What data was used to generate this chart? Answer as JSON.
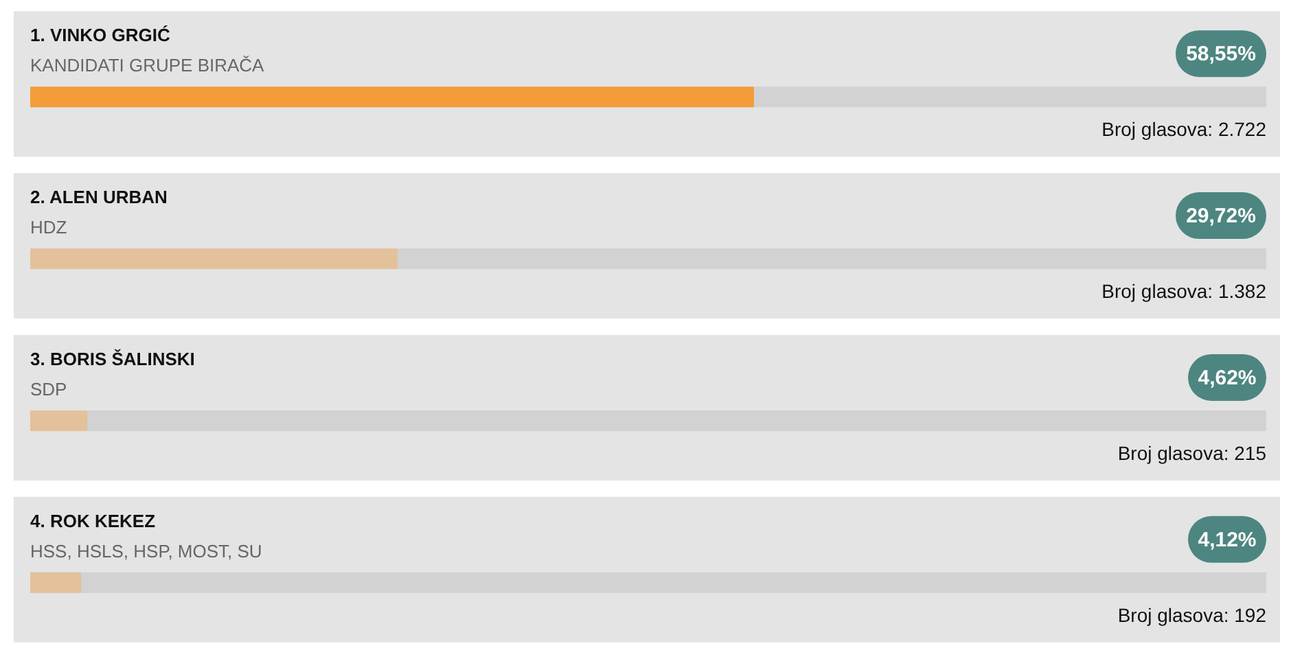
{
  "chart_data": {
    "type": "bar",
    "orientation": "horizontal",
    "categories": [
      "1. VINKO GRGIĆ",
      "2. ALEN URBAN",
      "3. BORIS ŠALINSKI",
      "4. ROK KEKEZ"
    ],
    "values": [
      58.55,
      29.72,
      4.62,
      4.12
    ],
    "colors": [
      "#f39c39",
      "#e3c19b",
      "#e3c19b",
      "#e3c19b"
    ],
    "value_labels": [
      "58,55%",
      "29,72%",
      "4,62%",
      "4,12%"
    ],
    "xlim": [
      0,
      100
    ],
    "tick_labels": false,
    "annotations": [
      "KANDIDATI GRUPE BIRAČA",
      "Broj glasova: 2.722",
      "HDZ",
      "Broj glasova: 1.382",
      "SDP",
      "Broj glasova: 215",
      "HSS, HSLS, HSP, MOST, SU",
      "Broj glasova: 192"
    ]
  }
}
